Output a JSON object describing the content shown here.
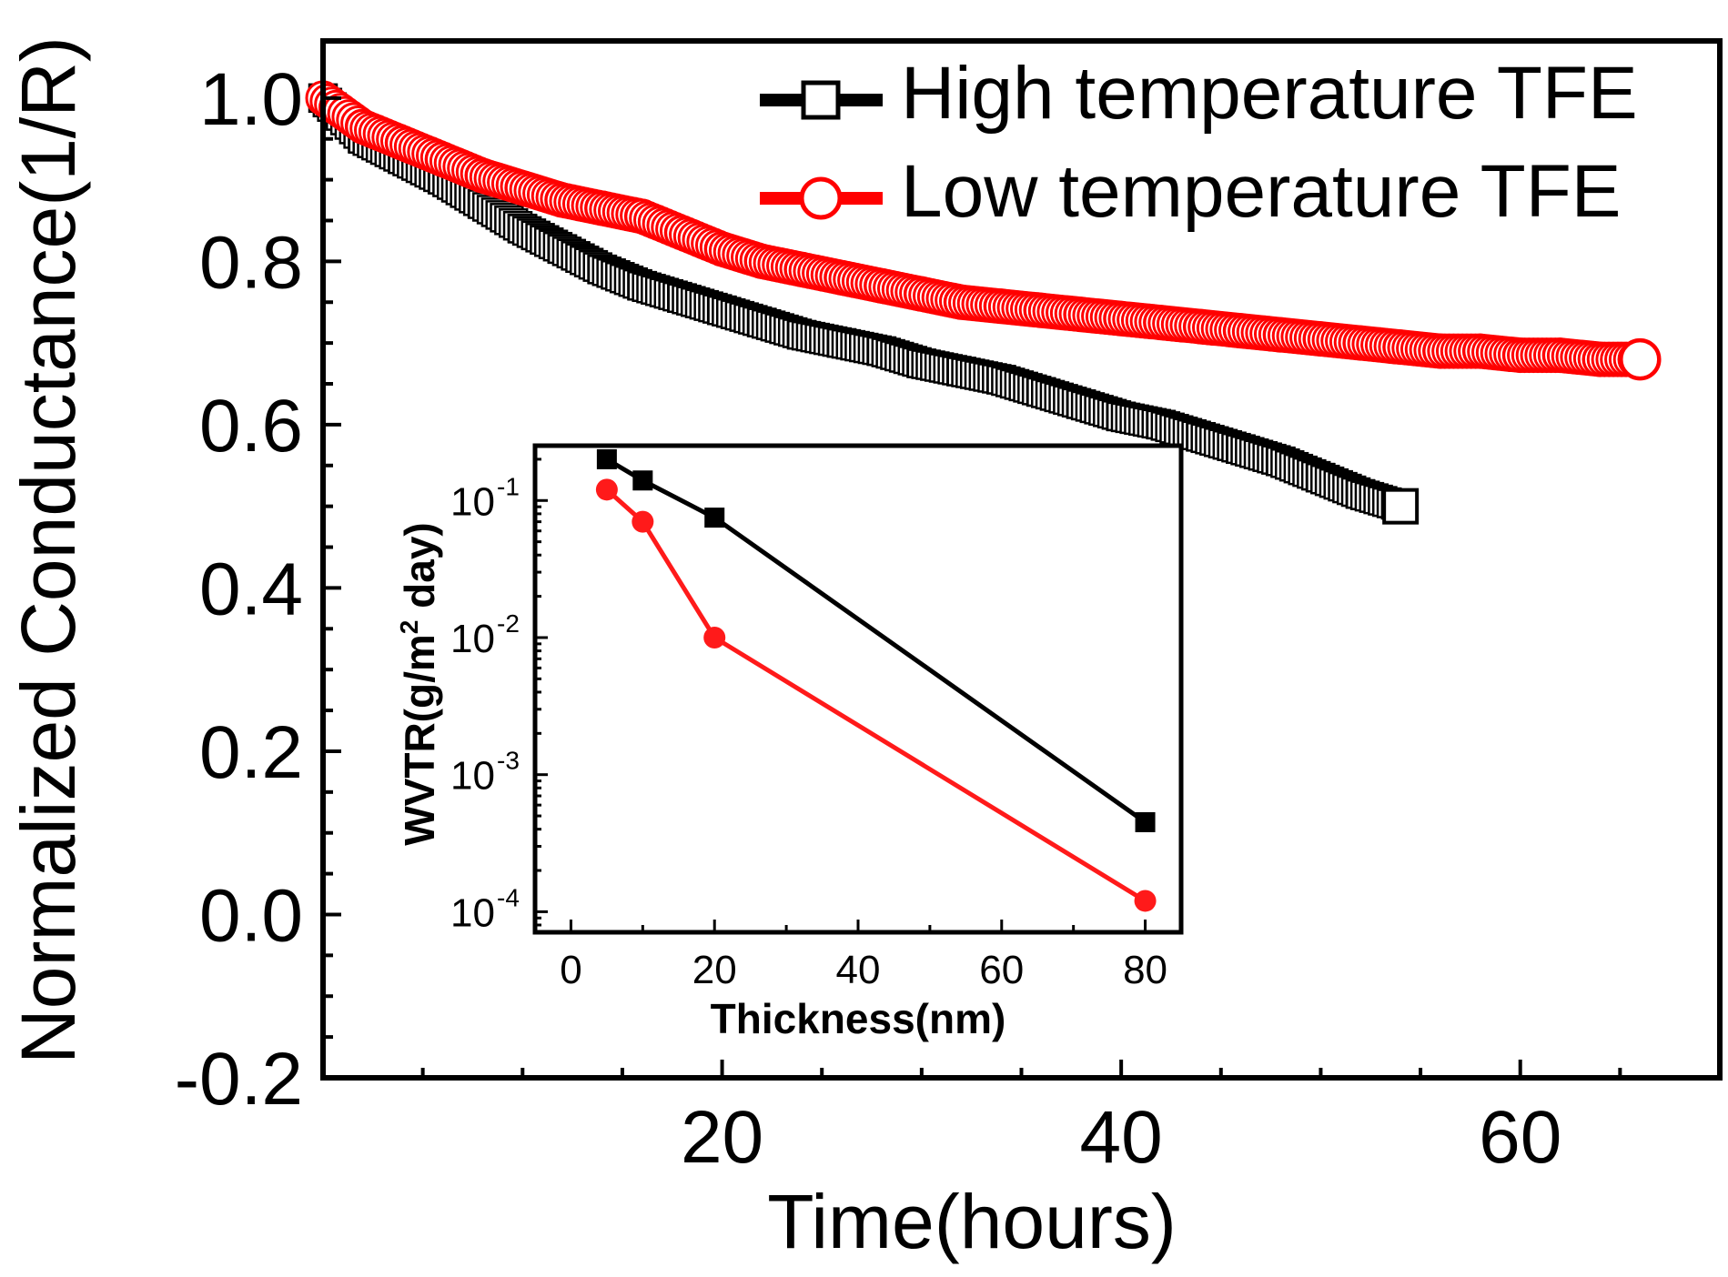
{
  "chart_data": [
    {
      "type": "scatter",
      "role": "main",
      "title": "",
      "xlabel": "Time(hours)",
      "ylabel": "Normalized Conductance(1/R)",
      "xlim": [
        0,
        70
      ],
      "ylim": [
        -0.2,
        1.07
      ],
      "xticks": [
        20,
        40,
        60
      ],
      "xtick_labels": [
        "20",
        "40",
        "60"
      ],
      "yticks": [
        1.0,
        0.8,
        0.6,
        0.4,
        0.2,
        0.0,
        -0.2
      ],
      "ytick_labels": [
        "1.0",
        "0.8",
        "0.6",
        "0.4",
        "0.2",
        "0.0",
        "-0.2"
      ],
      "grid": false,
      "legend_position": "top-right",
      "series": [
        {
          "name": "High temperature TFE",
          "marker": "open-square",
          "color": "#000000",
          "x": [
            0,
            2,
            4,
            6,
            8,
            10,
            12,
            14,
            16,
            18,
            20,
            22,
            24,
            26,
            28,
            30,
            32,
            34,
            36,
            38,
            40,
            42,
            44,
            46,
            48,
            50,
            52,
            54
          ],
          "y": [
            1.0,
            0.95,
            0.925,
            0.9,
            0.87,
            0.84,
            0.815,
            0.79,
            0.77,
            0.755,
            0.74,
            0.725,
            0.71,
            0.7,
            0.69,
            0.675,
            0.665,
            0.655,
            0.64,
            0.625,
            0.61,
            0.6,
            0.585,
            0.57,
            0.555,
            0.535,
            0.515,
            0.5
          ]
        },
        {
          "name": "Low temperature TFE",
          "marker": "open-circle",
          "color": "#ff0000",
          "x": [
            0,
            2,
            4,
            6,
            8,
            10,
            12,
            14,
            16,
            18,
            20,
            22,
            24,
            26,
            28,
            30,
            32,
            34,
            36,
            38,
            40,
            42,
            44,
            46,
            48,
            50,
            52,
            54,
            56,
            58,
            60,
            62,
            64,
            66
          ],
          "y": [
            1.0,
            0.965,
            0.945,
            0.925,
            0.905,
            0.89,
            0.875,
            0.865,
            0.855,
            0.835,
            0.815,
            0.8,
            0.79,
            0.78,
            0.77,
            0.76,
            0.75,
            0.745,
            0.74,
            0.735,
            0.73,
            0.725,
            0.72,
            0.715,
            0.71,
            0.705,
            0.7,
            0.695,
            0.69,
            0.69,
            0.685,
            0.685,
            0.68,
            0.68
          ]
        }
      ]
    },
    {
      "type": "line",
      "role": "inset",
      "title": "",
      "xlabel": "Thickness(nm)",
      "ylabel_main": "WVTR(g/m",
      "ylabel_sup": "2",
      "ylabel_end": " day)",
      "yscale": "log",
      "xlim": [
        -5,
        85
      ],
      "ylim_exp": [
        -4.15,
        -0.6
      ],
      "xticks": [
        0,
        20,
        40,
        60,
        80
      ],
      "xtick_labels": [
        "0",
        "20",
        "40",
        "60",
        "80"
      ],
      "ytick_exponents": [
        -1,
        -2,
        -3,
        -4
      ],
      "ytick_base": "10",
      "ytick_exp_labels": [
        "-1",
        "-2",
        "-3",
        "-4"
      ],
      "grid": false,
      "series": [
        {
          "name": "High temperature TFE",
          "marker": "filled-square",
          "color": "#000000",
          "x": [
            5,
            10,
            20,
            80
          ],
          "y": [
            0.2,
            0.14,
            0.075,
            0.00045
          ]
        },
        {
          "name": "Low temperature TFE",
          "marker": "filled-circle",
          "color": "#ff1a1a",
          "x": [
            5,
            10,
            20,
            80
          ],
          "y": [
            0.12,
            0.07,
            0.01,
            0.00012
          ]
        }
      ]
    }
  ]
}
